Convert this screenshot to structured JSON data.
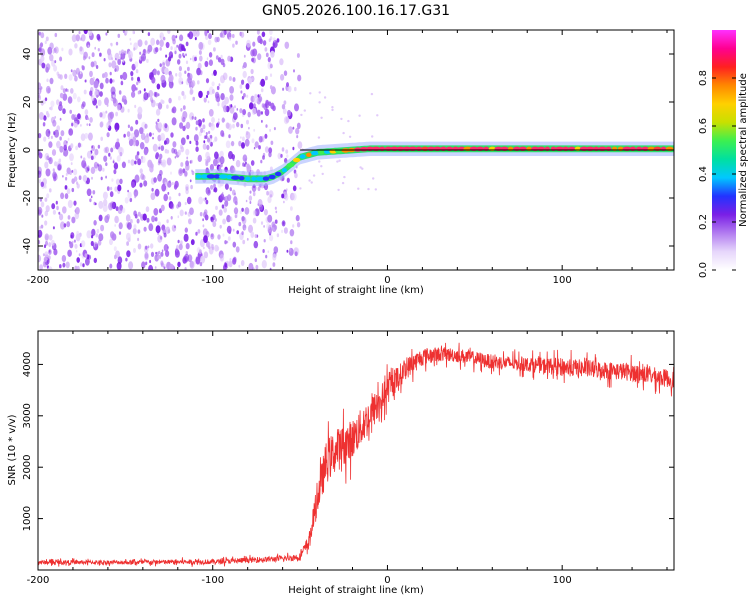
{
  "title": "GN05.2026.100.16.17.G31",
  "chart_data": [
    {
      "type": "heatmap",
      "name": "spectrogram",
      "xlabel": "Height of straight line (km)",
      "ylabel": "Frequency (Hz)",
      "xlim": [
        -200,
        164
      ],
      "ylim": [
        -50,
        50
      ],
      "x_ticks": [
        -200,
        -100,
        0,
        100
      ],
      "x_tick_labels": [
        "-200",
        "-100",
        "0",
        "100"
      ],
      "y_ticks": [
        -40,
        -20,
        0,
        20,
        40
      ],
      "y_tick_labels": [
        "-40",
        "-20",
        "0",
        "20",
        "40"
      ],
      "colorbar": {
        "label": "Normalized spectral amplitude",
        "range": [
          0,
          1
        ],
        "ticks": [
          0,
          0.2,
          0.4,
          0.6,
          0.8
        ],
        "tick_labels": [
          "0.0",
          "0.2",
          "0.4",
          "0.6",
          "0.8"
        ],
        "colors": [
          "#ffffff",
          "#e6d6fb",
          "#b27cf0",
          "#7a1fe6",
          "#2233ff",
          "#00c8ff",
          "#00e0a0",
          "#3cf050",
          "#c8e000",
          "#ffd000",
          "#ff8800",
          "#ff2020",
          "#ff0090",
          "#ff30ff"
        ]
      },
      "noise_region_x": [
        -200,
        -50
      ],
      "noise_color": "#7a1fe6",
      "signal_track": {
        "x": [
          -110,
          -95,
          -80,
          -70,
          -65,
          -60,
          -55,
          -50,
          -45,
          -40,
          -30,
          -20,
          -10,
          0,
          50,
          100,
          164
        ],
        "y": [
          -11,
          -11,
          -12,
          -12,
          -11,
          -9,
          -6,
          -3,
          -2,
          -1,
          -0.5,
          0,
          0.5,
          0.5,
          0.5,
          0.5,
          0.5
        ]
      },
      "reference_line_y": 0,
      "reference_line_x": [
        -50,
        164
      ]
    },
    {
      "type": "line",
      "name": "snr",
      "xlabel": "Height of straight line (km)",
      "ylabel": "SNR (10 * v/v)",
      "xlim": [
        -200,
        164
      ],
      "ylim": [
        0,
        4650
      ],
      "x_ticks": [
        -200,
        -100,
        0,
        100
      ],
      "x_tick_labels": [
        "-200",
        "-100",
        "0",
        "100"
      ],
      "y_ticks": [
        1000,
        2000,
        3000,
        4000
      ],
      "y_tick_labels": [
        "1000",
        "2000",
        "3000",
        "4000"
      ],
      "color": "#ee3030",
      "series": [
        {
          "name": "SNR",
          "x": [
            -200,
            -150,
            -100,
            -60,
            -50,
            -45,
            -40,
            -35,
            -30,
            -20,
            -10,
            0,
            10,
            20,
            30,
            40,
            60,
            80,
            100,
            120,
            140,
            164
          ],
          "y": [
            150,
            150,
            160,
            220,
            260,
            550,
            1400,
            2100,
            2300,
            2550,
            3000,
            3500,
            3900,
            4150,
            4200,
            4180,
            4050,
            4000,
            3950,
            3900,
            3850,
            3700
          ],
          "noise_amplitude": [
            60,
            60,
            70,
            80,
            100,
            220,
            450,
            600,
            600,
            550,
            500,
            400,
            300,
            250,
            200,
            200,
            200,
            200,
            250,
            250,
            250,
            250
          ]
        }
      ]
    }
  ]
}
